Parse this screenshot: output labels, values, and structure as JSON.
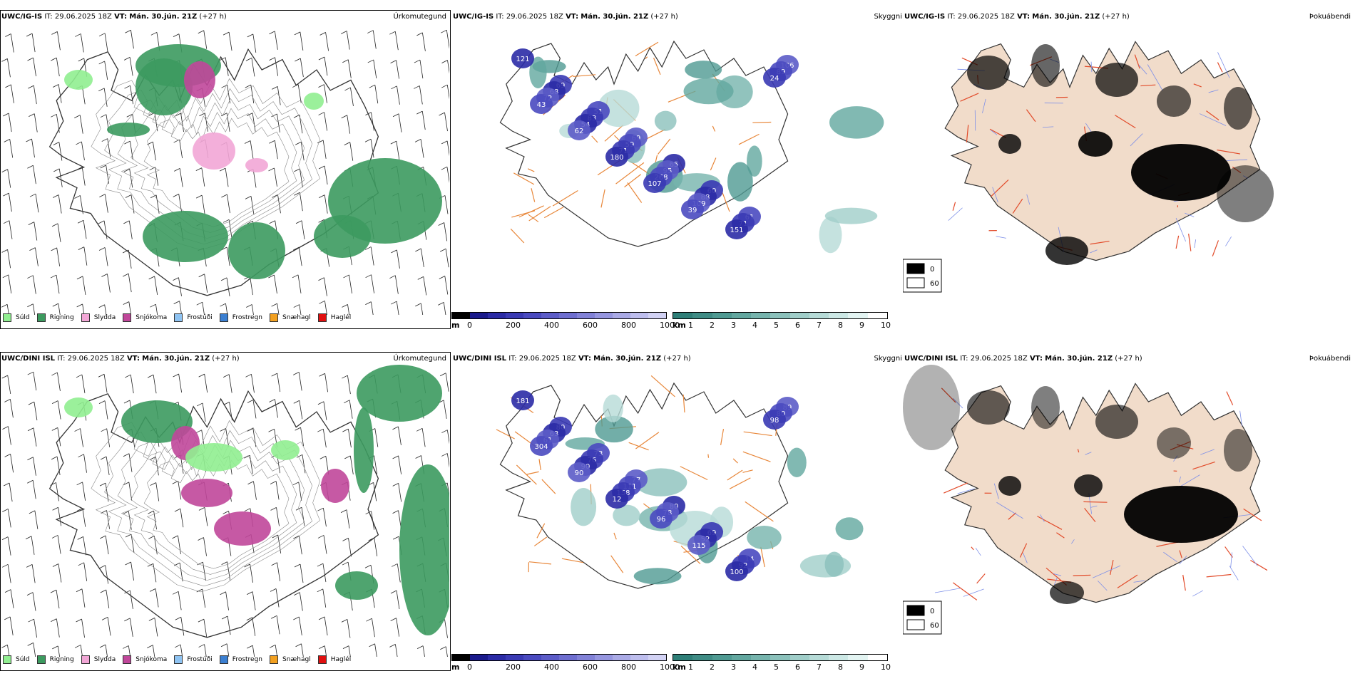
{
  "rows": [
    {
      "model": "UWC/IG-IS",
      "it_label": "IT:",
      "it_value": "29.06.2025 18Z",
      "vt_label": "VT:",
      "vt_value": "Mán. 30.jún. 21Z",
      "lead": "(+27 h)"
    },
    {
      "model": "UWC/DINI ISL",
      "it_label": "IT:",
      "it_value": "29.06.2025 18Z",
      "vt_label": "VT:",
      "vt_value": "Mán. 30.jún. 21Z",
      "lead": "(+27 h)"
    }
  ],
  "variables": {
    "precip_type": "Úrkomutegund",
    "visibility": "Skyggni",
    "fog_index": "Þokuábendi"
  },
  "precip_legend": [
    {
      "label": "Súld",
      "color": "#90ee90"
    },
    {
      "label": "Rigning",
      "color": "#3c9a5f"
    },
    {
      "label": "Slydda",
      "color": "#f2a6d6"
    },
    {
      "label": "Snjókoma",
      "color": "#c0479a"
    },
    {
      "label": "Frostúði",
      "color": "#8ec3f2"
    },
    {
      "label": "Frostregn",
      "color": "#3b7fd1"
    },
    {
      "label": "Snæhagl",
      "color": "#f2a020"
    },
    {
      "label": "Haglél",
      "color": "#e01010"
    }
  ],
  "ceiling_bar": {
    "unit": "m",
    "ticks": [
      "0",
      "200",
      "400",
      "600",
      "800",
      "1000"
    ],
    "colors": [
      "#000000",
      "#1a1a8c",
      "#2b2ba6",
      "#3a3ab4",
      "#4a4ac0",
      "#5c5cc8",
      "#6e6ed0",
      "#8282d8",
      "#9696e0",
      "#aaaae6",
      "#bebeee",
      "#d2d2f4"
    ]
  },
  "vis_bar": {
    "unit": "km",
    "ticks": [
      "1",
      "2",
      "3",
      "4",
      "5",
      "6",
      "7",
      "8",
      "9",
      "10"
    ],
    "colors": [
      "#2f7f78",
      "#3f8c85",
      "#4f9a92",
      "#62a79f",
      "#76b4ad",
      "#8bc1bb",
      "#a0cec9",
      "#b6dbd7",
      "#cce8e5",
      "#e3f4f2",
      "#ffffff"
    ]
  },
  "fog_legend": [
    {
      "label": "0",
      "color": "#000000"
    },
    {
      "label": "60",
      "color": "#ffffff"
    }
  ],
  "ceiling_labels": [
    [
      "121",
      "69",
      "51",
      "69",
      "65",
      "60",
      "61",
      "106",
      "68",
      "83",
      "59",
      "95",
      "88",
      "71",
      "89",
      "72",
      "54",
      "71",
      "268",
      "109",
      "151",
      "24",
      "43",
      "62",
      "180",
      "107",
      "39"
    ],
    [
      "181",
      "80",
      "73",
      "77",
      "80",
      "69",
      "14",
      "89",
      "63",
      "76",
      "111",
      "78",
      "52",
      "92",
      "80",
      "61",
      "90",
      "158",
      "96",
      "115",
      "100",
      "98",
      "304",
      "90",
      "12"
    ]
  ],
  "colors": {
    "road": "#e8873a",
    "coast": "#333333",
    "fog_land": "#f1dcca",
    "wind_barb": "#222222"
  }
}
